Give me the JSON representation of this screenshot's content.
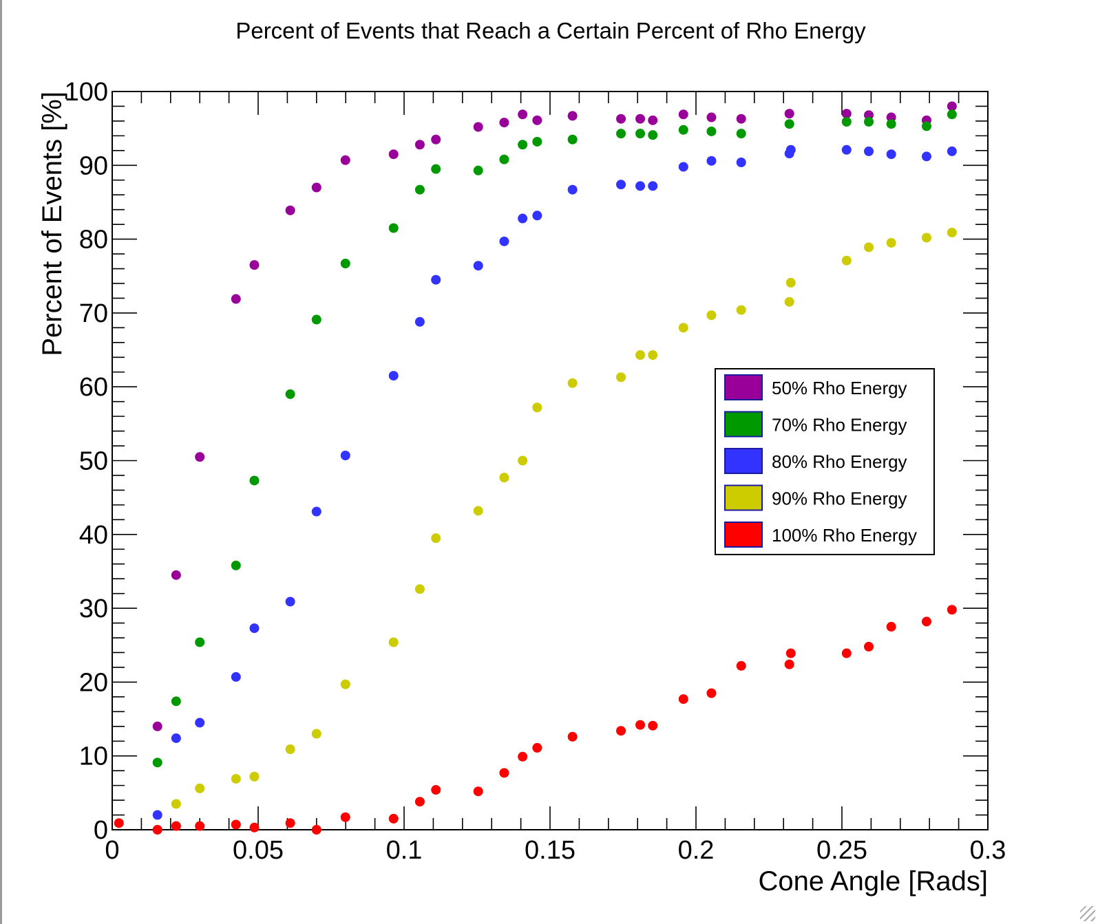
{
  "chart_data": {
    "type": "scatter",
    "title": "Percent of Events that Reach a Certain Percent of Rho Energy",
    "xlabel": "Cone Angle [Rads]",
    "ylabel": "Percent of Events [%]",
    "xlim": [
      0,
      0.3
    ],
    "ylim": [
      0,
      100
    ],
    "x_ticks": [
      {
        "value": 0,
        "label": "0"
      },
      {
        "value": 0.05,
        "label": "0.05"
      },
      {
        "value": 0.1,
        "label": "0.1"
      },
      {
        "value": 0.15,
        "label": "0.15"
      },
      {
        "value": 0.2,
        "label": "0.2"
      },
      {
        "value": 0.25,
        "label": "0.25"
      },
      {
        "value": 0.3,
        "label": "0.3"
      }
    ],
    "y_ticks": [
      {
        "value": 0,
        "label": "0"
      },
      {
        "value": 10,
        "label": "10"
      },
      {
        "value": 20,
        "label": "20"
      },
      {
        "value": 30,
        "label": "30"
      },
      {
        "value": 40,
        "label": "40"
      },
      {
        "value": 50,
        "label": "50"
      },
      {
        "value": 60,
        "label": "60"
      },
      {
        "value": 70,
        "label": "70"
      },
      {
        "value": 80,
        "label": "80"
      },
      {
        "value": 90,
        "label": "90"
      },
      {
        "value": 100,
        "label": "100"
      }
    ],
    "grid": false,
    "legend_position": "right-middle",
    "series": [
      {
        "name": "50% Rho Energy",
        "color": "#990099",
        "points": [
          [
            0.0155,
            14.0
          ],
          [
            0.0219,
            34.5
          ],
          [
            0.03,
            50.5
          ],
          [
            0.0424,
            71.9
          ],
          [
            0.0487,
            76.5
          ],
          [
            0.061,
            83.9
          ],
          [
            0.07,
            87.0
          ],
          [
            0.0799,
            90.7
          ],
          [
            0.0964,
            91.5
          ],
          [
            0.1054,
            92.8
          ],
          [
            0.1109,
            93.5
          ],
          [
            0.1254,
            95.2
          ],
          [
            0.1343,
            95.8
          ],
          [
            0.1406,
            96.9
          ],
          [
            0.1456,
            96.1
          ],
          [
            0.1577,
            96.7
          ],
          [
            0.1743,
            96.3
          ],
          [
            0.1809,
            96.3
          ],
          [
            0.1852,
            96.1
          ],
          [
            0.1957,
            96.9
          ],
          [
            0.2053,
            96.5
          ],
          [
            0.2155,
            96.3
          ],
          [
            0.232,
            97.0
          ],
          [
            0.2516,
            97.0
          ],
          [
            0.2592,
            96.8
          ],
          [
            0.2669,
            96.5
          ],
          [
            0.279,
            96.1
          ],
          [
            0.2877,
            98.0
          ]
        ]
      },
      {
        "name": "70% Rho Energy",
        "color": "#009900",
        "points": [
          [
            0.0155,
            9.1
          ],
          [
            0.0219,
            17.4
          ],
          [
            0.03,
            25.4
          ],
          [
            0.0424,
            35.8
          ],
          [
            0.0487,
            47.3
          ],
          [
            0.061,
            59.0
          ],
          [
            0.07,
            69.1
          ],
          [
            0.0799,
            76.7
          ],
          [
            0.0964,
            81.5
          ],
          [
            0.1054,
            86.7
          ],
          [
            0.1109,
            89.5
          ],
          [
            0.1254,
            89.3
          ],
          [
            0.1343,
            90.8
          ],
          [
            0.1406,
            92.8
          ],
          [
            0.1456,
            93.2
          ],
          [
            0.1577,
            93.5
          ],
          [
            0.1743,
            94.3
          ],
          [
            0.1809,
            94.3
          ],
          [
            0.1852,
            94.1
          ],
          [
            0.1957,
            94.8
          ],
          [
            0.2053,
            94.6
          ],
          [
            0.2155,
            94.3
          ],
          [
            0.232,
            95.6
          ],
          [
            0.2516,
            95.9
          ],
          [
            0.2592,
            95.9
          ],
          [
            0.2669,
            95.6
          ],
          [
            0.279,
            95.3
          ],
          [
            0.2877,
            96.9
          ]
        ]
      },
      {
        "name": "80% Rho Energy",
        "color": "#3333ff",
        "points": [
          [
            0.0155,
            2.0
          ],
          [
            0.0219,
            12.4
          ],
          [
            0.03,
            14.5
          ],
          [
            0.0424,
            20.7
          ],
          [
            0.0487,
            27.3
          ],
          [
            0.061,
            30.9
          ],
          [
            0.07,
            43.1
          ],
          [
            0.0799,
            50.7
          ],
          [
            0.0964,
            61.5
          ],
          [
            0.1054,
            68.8
          ],
          [
            0.1109,
            74.5
          ],
          [
            0.1254,
            76.4
          ],
          [
            0.1343,
            79.7
          ],
          [
            0.1406,
            82.8
          ],
          [
            0.1456,
            83.2
          ],
          [
            0.1577,
            86.7
          ],
          [
            0.1743,
            87.4
          ],
          [
            0.1809,
            87.2
          ],
          [
            0.1852,
            87.2
          ],
          [
            0.1957,
            89.8
          ],
          [
            0.2053,
            90.6
          ],
          [
            0.2155,
            90.4
          ],
          [
            0.232,
            91.6
          ],
          [
            0.2516,
            92.1
          ],
          [
            0.2592,
            91.9
          ],
          [
            0.2669,
            91.5
          ],
          [
            0.279,
            91.2
          ],
          [
            0.2877,
            91.9
          ],
          [
            0.2325,
            92.1
          ]
        ]
      },
      {
        "name": "90% Rho Energy",
        "color": "#cccc00",
        "points": [
          [
            0.0219,
            3.5
          ],
          [
            0.03,
            5.6
          ],
          [
            0.0424,
            6.9
          ],
          [
            0.0487,
            7.2
          ],
          [
            0.061,
            10.9
          ],
          [
            0.07,
            13.0
          ],
          [
            0.0799,
            19.7
          ],
          [
            0.0964,
            25.4
          ],
          [
            0.1054,
            32.6
          ],
          [
            0.1109,
            39.5
          ],
          [
            0.1254,
            43.2
          ],
          [
            0.1343,
            47.7
          ],
          [
            0.1406,
            50.0
          ],
          [
            0.1456,
            57.2
          ],
          [
            0.1577,
            60.5
          ],
          [
            0.1743,
            61.3
          ],
          [
            0.1809,
            64.3
          ],
          [
            0.1852,
            64.3
          ],
          [
            0.1957,
            68.0
          ],
          [
            0.2053,
            69.7
          ],
          [
            0.2155,
            70.4
          ],
          [
            0.232,
            71.5
          ],
          [
            0.2325,
            74.1
          ],
          [
            0.2516,
            77.1
          ],
          [
            0.2592,
            78.9
          ],
          [
            0.2669,
            79.5
          ],
          [
            0.279,
            80.2
          ],
          [
            0.2877,
            80.9
          ]
        ]
      },
      {
        "name": "100% Rho Energy",
        "color": "#ff0000",
        "points": [
          [
            0.0023,
            0.9
          ],
          [
            0.0155,
            0.0
          ],
          [
            0.0219,
            0.5
          ],
          [
            0.03,
            0.5
          ],
          [
            0.0424,
            0.7
          ],
          [
            0.0487,
            0.3
          ],
          [
            0.061,
            0.9
          ],
          [
            0.07,
            0.0
          ],
          [
            0.0799,
            1.7
          ],
          [
            0.0964,
            1.5
          ],
          [
            0.1054,
            3.8
          ],
          [
            0.1109,
            5.4
          ],
          [
            0.1254,
            5.2
          ],
          [
            0.1343,
            7.7
          ],
          [
            0.1406,
            9.9
          ],
          [
            0.1456,
            11.1
          ],
          [
            0.1577,
            12.6
          ],
          [
            0.1743,
            13.4
          ],
          [
            0.1809,
            14.2
          ],
          [
            0.1852,
            14.1
          ],
          [
            0.1957,
            17.7
          ],
          [
            0.2053,
            18.5
          ],
          [
            0.2155,
            22.2
          ],
          [
            0.232,
            22.4
          ],
          [
            0.2325,
            23.9
          ],
          [
            0.2516,
            23.9
          ],
          [
            0.2592,
            24.8
          ],
          [
            0.2669,
            27.5
          ],
          [
            0.279,
            28.2
          ],
          [
            0.2877,
            29.8
          ]
        ]
      }
    ]
  }
}
